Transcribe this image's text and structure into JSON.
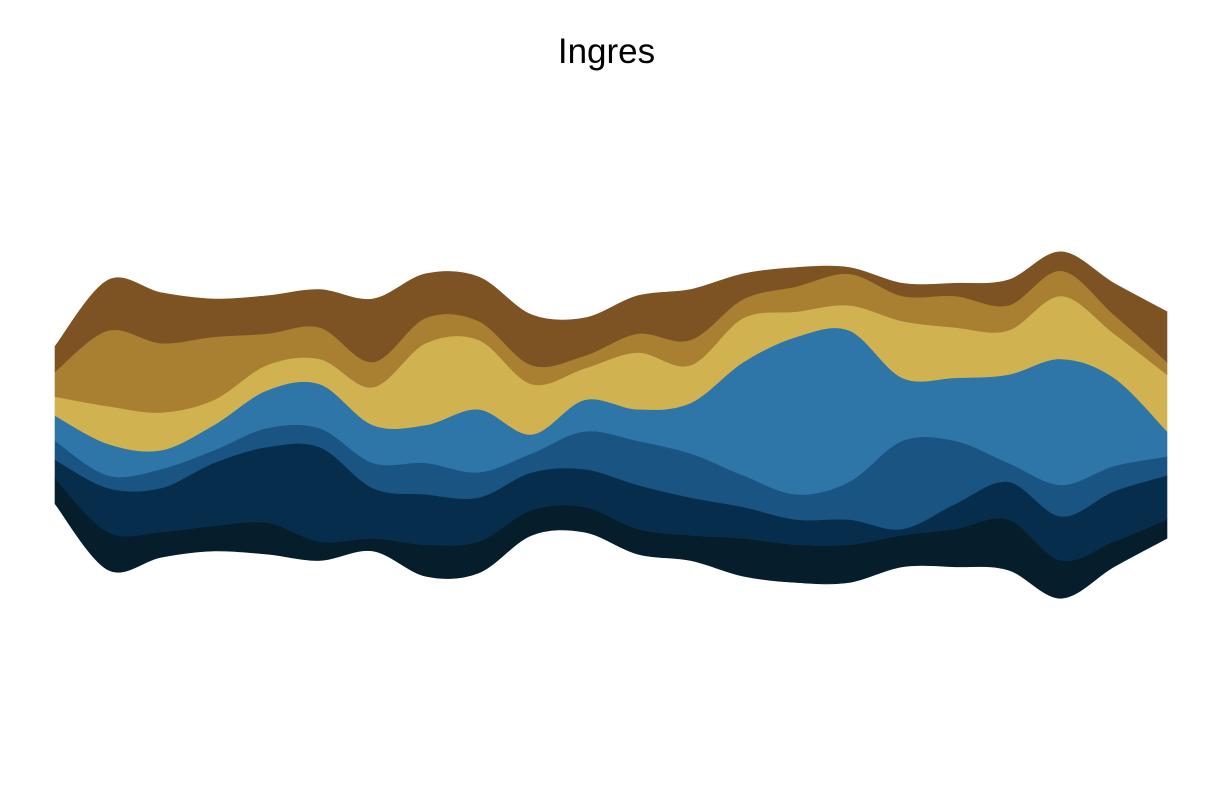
{
  "chart_data": {
    "type": "area",
    "stacking": "streamgraph",
    "title": "Ingres",
    "xlabel": "",
    "ylabel": "",
    "grid": false,
    "legend": "none",
    "axes_visible": false,
    "x": [
      0,
      1,
      2,
      3,
      4,
      5,
      6,
      7,
      8,
      9,
      10,
      11,
      12,
      13,
      14,
      15,
      16,
      17,
      18,
      19,
      20,
      21
    ],
    "series": [
      {
        "color": "#061d2c",
        "values": [
          4,
          6,
          4,
          4,
          5,
          3,
          2,
          5,
          5,
          4,
          4,
          4,
          4,
          6,
          6,
          6,
          5,
          6,
          8,
          6,
          4,
          3
        ]
      },
      {
        "color": "#062e4c",
        "values": [
          3,
          7,
          7,
          10,
          12,
          15,
          8,
          8,
          7,
          6,
          6,
          7,
          6,
          5,
          4,
          4,
          1,
          4,
          6,
          7,
          8,
          7
        ]
      },
      {
        "color": "#1a5482",
        "values": [
          3,
          2,
          3,
          2,
          3,
          3,
          4,
          5,
          4,
          3,
          6,
          7,
          7,
          5,
          4,
          6,
          14,
          10,
          3,
          5,
          4,
          3
        ]
      },
      {
        "color": "#2e75a8",
        "values": [
          4,
          5,
          3,
          4,
          6,
          7,
          6,
          6,
          10,
          3,
          5,
          5,
          8,
          18,
          25,
          24,
          10,
          10,
          14,
          20,
          14,
          4
        ]
      },
      {
        "color": "#d1b251",
        "values": [
          3,
          6,
          6,
          4,
          4,
          4,
          6,
          13,
          11,
          8,
          5,
          9,
          6,
          7,
          4,
          4,
          9,
          8,
          7,
          10,
          7,
          9
        ]
      },
      {
        "color": "#a98032",
        "values": [
          4,
          12,
          11,
          10,
          5,
          5,
          4,
          4,
          3,
          3,
          2,
          3,
          4,
          3,
          4,
          5,
          4,
          5,
          4,
          4,
          3,
          2
        ]
      },
      {
        "color": "#7d5324",
        "values": [
          4,
          8,
          8,
          6,
          6,
          6,
          10,
          7,
          7,
          8,
          6,
          6,
          8,
          4,
          3,
          1,
          2,
          2,
          4,
          3,
          5,
          8
        ]
      }
    ]
  }
}
